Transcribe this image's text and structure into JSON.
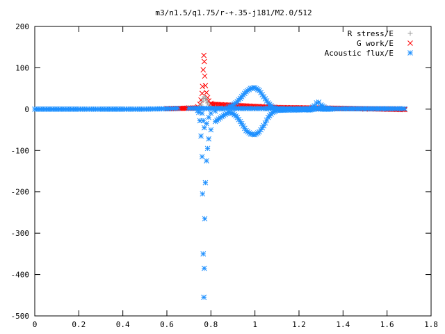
{
  "chart_data": {
    "type": "scatter",
    "title": "m3/n1.5/q1.75/r-+.35-j181/M2.0/512",
    "xlabel": "",
    "ylabel": "",
    "xlim": [
      0,
      1.8
    ],
    "ylim": [
      -500,
      200
    ],
    "x_ticks": [
      "0",
      "0.2",
      "0.4",
      "0.6",
      "0.8",
      "1",
      "1.2",
      "1.4",
      "1.6",
      "1.8"
    ],
    "y_ticks": [
      "200",
      "100",
      "0",
      "-100",
      "-200",
      "-300",
      "-400",
      "-500"
    ],
    "grid": false,
    "legend_position": "top-right",
    "series": [
      {
        "name": "R stress/E",
        "marker": "+",
        "color": "#a0a0a0",
        "points": [
          [
            0.745,
            3
          ],
          [
            0.75,
            6
          ],
          [
            0.755,
            10
          ],
          [
            0.76,
            18
          ],
          [
            0.765,
            25
          ],
          [
            0.77,
            30
          ],
          [
            0.775,
            26
          ],
          [
            0.78,
            20
          ],
          [
            0.785,
            15
          ],
          [
            0.79,
            10
          ],
          [
            0.8,
            7
          ],
          [
            0.82,
            5
          ],
          [
            0.85,
            3
          ],
          [
            0.9,
            2
          ],
          [
            0.95,
            1
          ],
          [
            1.0,
            1
          ],
          [
            1.05,
            1
          ],
          [
            1.1,
            0.5
          ],
          [
            1.2,
            0.5
          ],
          [
            1.3,
            0.5
          ],
          [
            1.4,
            0.5
          ],
          [
            1.5,
            0.5
          ],
          [
            1.6,
            0.5
          ],
          [
            1.68,
            0.5
          ]
        ]
      },
      {
        "name": "G work/E",
        "marker": "x",
        "color": "#ff0000",
        "points": [
          [
            0.6,
            2
          ],
          [
            0.7,
            3
          ],
          [
            0.74,
            6
          ],
          [
            0.75,
            12
          ],
          [
            0.755,
            22
          ],
          [
            0.76,
            38
          ],
          [
            0.762,
            55
          ],
          [
            0.765,
            95
          ],
          [
            0.768,
            130
          ],
          [
            0.77,
            115
          ],
          [
            0.772,
            80
          ],
          [
            0.775,
            57
          ],
          [
            0.78,
            40
          ],
          [
            0.785,
            28
          ],
          [
            0.79,
            20
          ],
          [
            0.8,
            14
          ],
          [
            0.82,
            10
          ],
          [
            0.85,
            8
          ],
          [
            0.9,
            6
          ],
          [
            0.95,
            5
          ],
          [
            1.0,
            4
          ],
          [
            1.05,
            4
          ],
          [
            1.1,
            3
          ],
          [
            1.2,
            3
          ],
          [
            1.3,
            2
          ],
          [
            1.4,
            1
          ],
          [
            1.5,
            0
          ],
          [
            1.6,
            0
          ],
          [
            1.68,
            -1
          ]
        ]
      },
      {
        "name": "Acoustic flux/E",
        "marker": "*",
        "color": "#1e90ff",
        "upper_branch": [
          [
            0.7,
            2
          ],
          [
            0.74,
            2
          ],
          [
            0.75,
            0
          ],
          [
            0.76,
            -10
          ],
          [
            0.765,
            -28
          ],
          [
            0.77,
            -45
          ],
          [
            0.78,
            -35
          ],
          [
            0.79,
            -20
          ],
          [
            0.8,
            -10
          ],
          [
            0.82,
            -5
          ],
          [
            0.85,
            0
          ],
          [
            0.88,
            5
          ],
          [
            0.9,
            10
          ],
          [
            0.92,
            18
          ],
          [
            0.94,
            30
          ],
          [
            0.96,
            42
          ],
          [
            0.98,
            50
          ],
          [
            1.0,
            52
          ],
          [
            1.02,
            45
          ],
          [
            1.04,
            30
          ],
          [
            1.06,
            15
          ],
          [
            1.08,
            5
          ],
          [
            1.1,
            0
          ],
          [
            1.15,
            -2
          ],
          [
            1.2,
            -2
          ],
          [
            1.25,
            0
          ],
          [
            1.27,
            8
          ],
          [
            1.28,
            15
          ],
          [
            1.29,
            17
          ],
          [
            1.3,
            10
          ],
          [
            1.32,
            3
          ],
          [
            1.35,
            1
          ]
        ],
        "lower_branch": [
          [
            0.74,
            -3
          ],
          [
            0.745,
            -8
          ],
          [
            0.75,
            -28
          ],
          [
            0.755,
            -65
          ],
          [
            0.76,
            -115
          ],
          [
            0.762,
            -205
          ],
          [
            0.765,
            -350
          ],
          [
            0.768,
            -455
          ],
          [
            0.77,
            -385
          ],
          [
            0.772,
            -265
          ],
          [
            0.775,
            -178
          ],
          [
            0.78,
            -125
          ],
          [
            0.785,
            -95
          ],
          [
            0.79,
            -72
          ],
          [
            0.8,
            -50
          ],
          [
            0.82,
            -30
          ],
          [
            0.85,
            -18
          ],
          [
            0.88,
            -8
          ],
          [
            0.9,
            -10
          ],
          [
            0.92,
            -20
          ],
          [
            0.94,
            -35
          ],
          [
            0.96,
            -52
          ],
          [
            0.98,
            -60
          ],
          [
            1.0,
            -62
          ],
          [
            1.02,
            -55
          ],
          [
            1.04,
            -40
          ],
          [
            1.06,
            -20
          ],
          [
            1.08,
            -8
          ],
          [
            1.1,
            -3
          ],
          [
            1.15,
            -2
          ],
          [
            1.2,
            -1
          ],
          [
            1.25,
            -2
          ],
          [
            1.27,
            0
          ],
          [
            1.28,
            3
          ],
          [
            1.3,
            0
          ],
          [
            1.35,
            0
          ]
        ],
        "baseline": [
          [
            0.0,
            0
          ],
          [
            0.1,
            0
          ],
          [
            0.2,
            0
          ],
          [
            0.3,
            0
          ],
          [
            0.4,
            0
          ],
          [
            0.5,
            0
          ],
          [
            0.6,
            1
          ],
          [
            0.65,
            2
          ],
          [
            0.7,
            2
          ],
          [
            1.4,
            1
          ],
          [
            1.5,
            1
          ],
          [
            1.6,
            1
          ],
          [
            1.68,
            1
          ]
        ]
      }
    ]
  }
}
